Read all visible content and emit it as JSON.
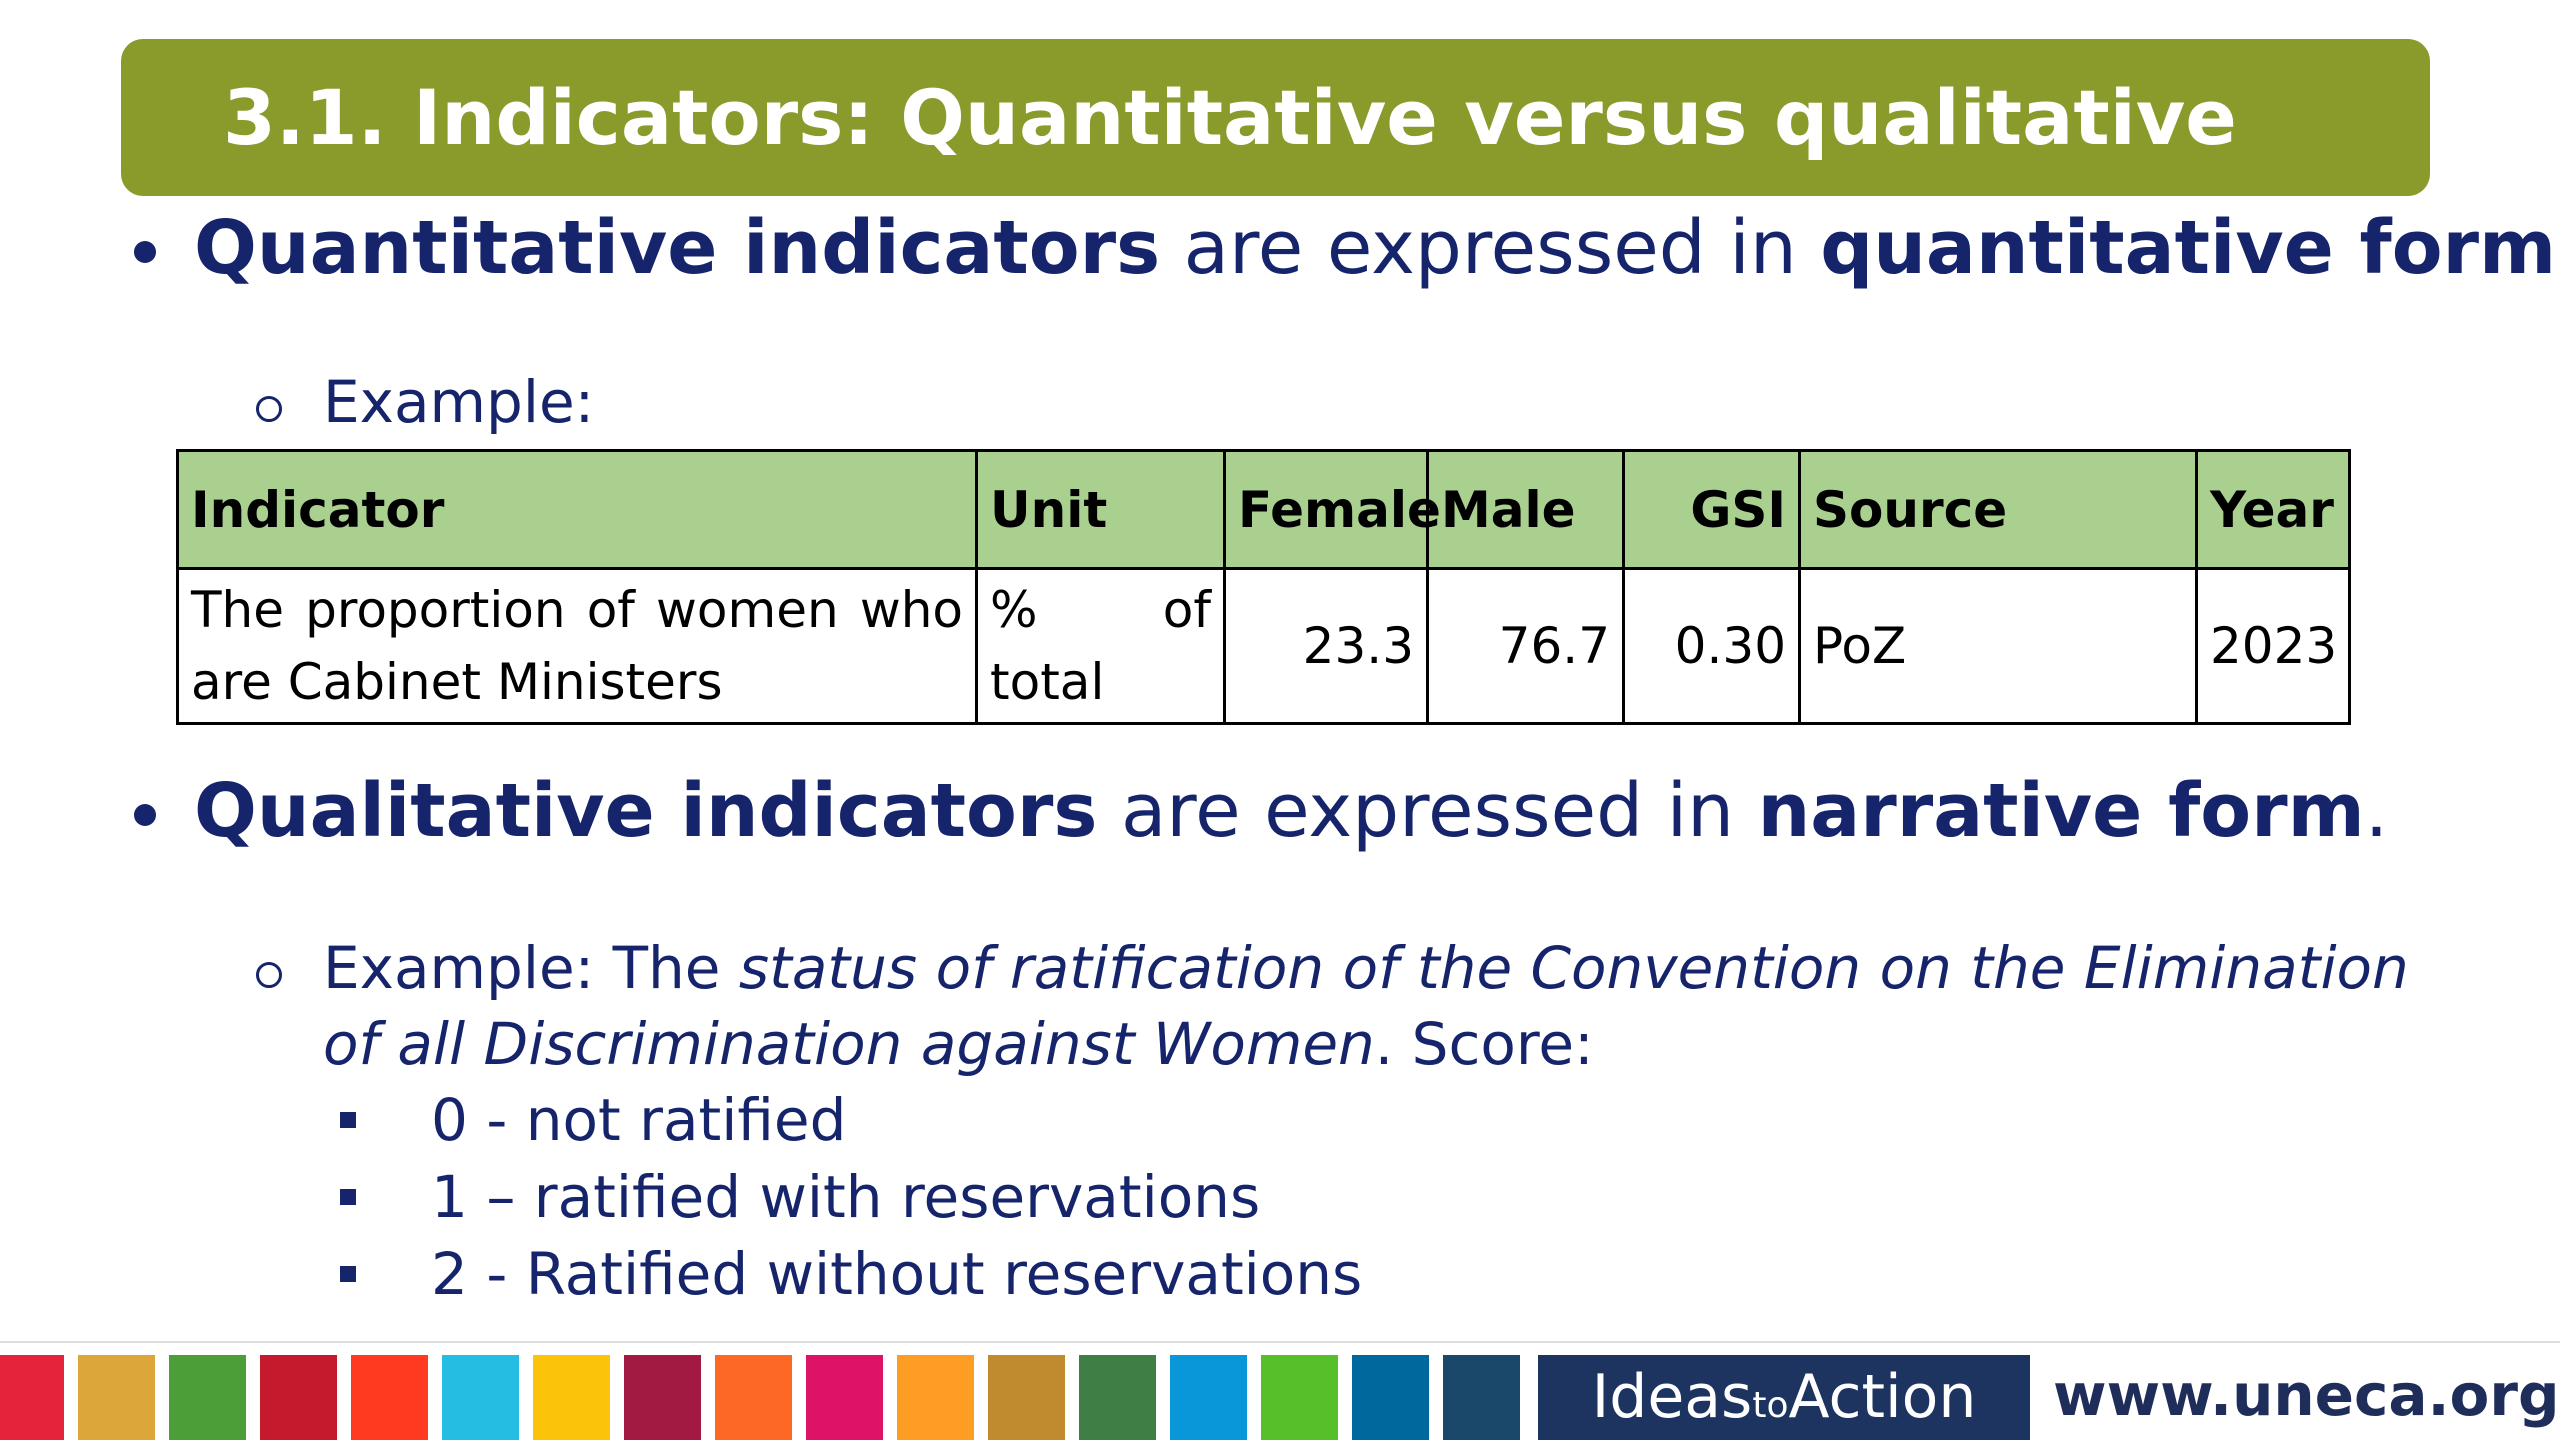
{
  "header": {
    "title": "3.1. Indicators: Quantitative versus qualitative"
  },
  "bullets": [
    {
      "runs": [
        {
          "text": "Quantitative indicators",
          "style": "bold"
        },
        {
          "text": " are expressed in ",
          "style": "regular"
        },
        {
          "text": "quantitative form",
          "style": "bold"
        },
        {
          "text": ".",
          "style": "regular"
        }
      ],
      "example": {
        "runs": [
          {
            "text": "Example:",
            "style": "regular"
          }
        ]
      }
    },
    {
      "runs": [
        {
          "text": "Qualitative indicators",
          "style": "bold"
        },
        {
          "text": " are expressed in ",
          "style": "regular"
        },
        {
          "text": "narrative form",
          "style": "bold"
        },
        {
          "text": ".",
          "style": "regular"
        }
      ],
      "example": {
        "runs": [
          {
            "text": "Example: The ",
            "style": "regular"
          },
          {
            "text": "status of ratification of the Convention on the Elimination of all Discrimination against Women",
            "style": "italic"
          },
          {
            "text": ". Score:",
            "style": "regular"
          }
        ],
        "items": [
          "0 - not ratified",
          "1 – ratified with reservations",
          "2 - Ratified without reservations"
        ]
      }
    }
  ],
  "table": {
    "header": [
      "Indicator",
      "Unit",
      "Female",
      "Male",
      "GSI",
      "Source",
      "Year"
    ],
    "rows": [
      [
        "The proportion of women who are Cabinet Ministers",
        "% of total",
        "23.3",
        "76.7",
        "0.30",
        "PoZ",
        "2023"
      ]
    ],
    "header_color": "#a9d08e"
  },
  "footer": {
    "logo_runs": [
      {
        "text": "Ideas",
        "style": "regular"
      },
      {
        "text": "to",
        "style": "small"
      },
      {
        "text": "Action",
        "style": "regular"
      }
    ],
    "url": "www.uneca.org"
  }
}
